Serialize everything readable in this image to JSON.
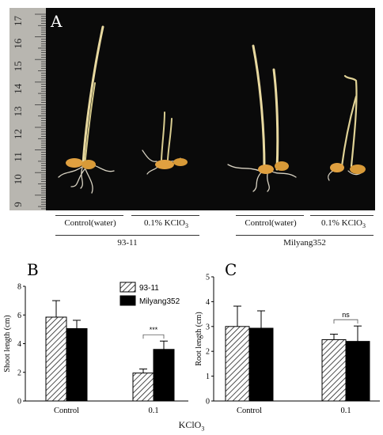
{
  "figure": {
    "panel_a": {
      "letter": "A",
      "ruler_ticks": [
        "17",
        "16",
        "15",
        "14",
        "13",
        "12",
        "11",
        "10",
        "9"
      ],
      "treatment_labels": [
        "Control(water)",
        "0.1% KClO",
        "Control(water)",
        "0.1% KClO"
      ],
      "treatment_subscript": "3",
      "cultivar_labels": [
        "93-11",
        "Milyang352"
      ]
    },
    "shared_xlabel": {
      "text": "KClO",
      "subscript": "3"
    },
    "colors": {
      "photo_bg": "#0a0a0a",
      "ruler": "#b8b6b0",
      "bar_black": "#000000",
      "hatch_stroke": "#222222"
    }
  },
  "chart_data": [
    {
      "type": "bar",
      "panel": "B",
      "categories": [
        "Control",
        "0.1"
      ],
      "ylabel": "Shoot length (cm)",
      "xlabel": "",
      "ylim": [
        0,
        8
      ],
      "yticks": [
        0,
        2,
        4,
        6,
        8
      ],
      "legend": {
        "placement": "top-right",
        "entries": [
          "93-11",
          "Milyang352"
        ]
      },
      "series": [
        {
          "name": "93-11",
          "pattern": "hatched",
          "values": [
            5.85,
            1.95
          ],
          "errors": [
            1.15,
            0.28
          ]
        },
        {
          "name": "Milyang352",
          "pattern": "solid",
          "values": [
            5.05,
            3.6
          ],
          "errors": [
            0.58,
            0.58
          ]
        }
      ],
      "annotations": [
        {
          "category": "0.1",
          "text": "***"
        }
      ]
    },
    {
      "type": "bar",
      "panel": "C",
      "categories": [
        "Control",
        "0.1"
      ],
      "ylabel": "Root length (cm)",
      "xlabel": "",
      "ylim": [
        0,
        5
      ],
      "yticks": [
        0,
        1,
        2,
        3,
        4,
        5
      ],
      "series": [
        {
          "name": "93-11",
          "pattern": "hatched",
          "values": [
            3.0,
            2.47
          ],
          "errors": [
            0.82,
            0.22
          ]
        },
        {
          "name": "Milyang352",
          "pattern": "solid",
          "values": [
            2.93,
            2.4
          ],
          "errors": [
            0.7,
            0.62
          ]
        }
      ],
      "annotations": [
        {
          "category": "0.1",
          "text": "ns"
        }
      ]
    }
  ]
}
